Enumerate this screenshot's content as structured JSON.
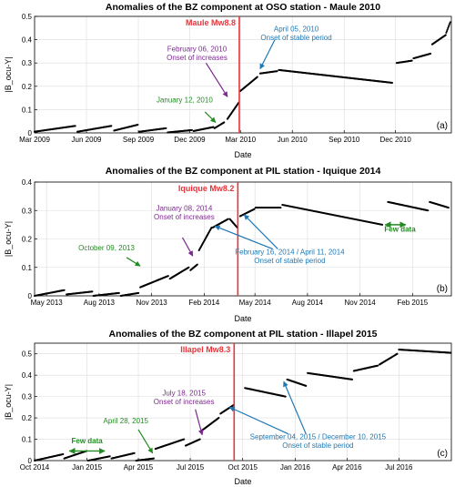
{
  "chart_data": [
    {
      "type": "scatter",
      "title": "Anomalies of the BZ component at OSO station - Maule 2010",
      "xlabel": "Date",
      "ylabel": "|B_ocu-Y|",
      "panel_label": "(a)",
      "xlim": [
        "2009-03-01",
        "2011-03-10"
      ],
      "ylim": [
        0,
        0.5
      ],
      "xticks": [
        {
          "date": "2009-03-01",
          "label": "Mar 2009"
        },
        {
          "date": "2009-06-01",
          "label": "Jun 2009"
        },
        {
          "date": "2009-09-01",
          "label": "Sep 2009"
        },
        {
          "date": "2009-12-01",
          "label": "Dec 2009"
        },
        {
          "date": "2010-03-01",
          "label": "Mar 2010"
        },
        {
          "date": "2010-06-01",
          "label": "Jun 2010"
        },
        {
          "date": "2010-09-01",
          "label": "Sep 2010"
        },
        {
          "date": "2010-12-01",
          "label": "Dec 2010"
        }
      ],
      "yticks": [
        0,
        0.1,
        0.2,
        0.3,
        0.4,
        0.5
      ],
      "grid": true,
      "earthquake": {
        "date": "2010-02-27",
        "label": "Maule Mw8.8",
        "color": "#e8343a"
      },
      "segments": [
        {
          "from": [
            "2009-03-01",
            0.005
          ],
          "to": [
            "2009-05-12",
            0.03
          ]
        },
        {
          "from": [
            "2009-05-16",
            0.005
          ],
          "to": [
            "2009-07-15",
            0.03
          ]
        },
        {
          "from": [
            "2009-07-20",
            0.01
          ],
          "to": [
            "2009-08-31",
            0.035
          ]
        },
        {
          "from": [
            "2009-09-03",
            0.005
          ],
          "to": [
            "2009-10-20",
            0.02
          ]
        },
        {
          "from": [
            "2009-10-23",
            0.002
          ],
          "to": [
            "2009-12-05",
            0.012
          ]
        },
        {
          "from": [
            "2009-12-08",
            0.008
          ],
          "to": [
            "2010-01-12",
            0.025
          ]
        },
        {
          "from": [
            "2010-01-14",
            0.02
          ],
          "to": [
            "2010-01-31",
            0.045
          ]
        },
        {
          "from": [
            "2010-02-06",
            0.06
          ],
          "to": [
            "2010-02-26",
            0.13
          ]
        },
        {
          "from": [
            "2010-03-01",
            0.18
          ],
          "to": [
            "2010-03-31",
            0.24
          ]
        },
        {
          "from": [
            "2010-04-05",
            0.255
          ],
          "to": [
            "2010-05-05",
            0.265
          ]
        },
        {
          "from": [
            "2010-05-08",
            0.27
          ],
          "to": [
            "2010-11-25",
            0.215
          ]
        },
        {
          "from": [
            "2010-12-03",
            0.3
          ],
          "to": [
            "2010-12-30",
            0.31
          ]
        },
        {
          "from": [
            "2011-01-02",
            0.32
          ],
          "to": [
            "2011-02-01",
            0.34
          ]
        },
        {
          "from": [
            "2011-02-04",
            0.38
          ],
          "to": [
            "2011-02-28",
            0.42
          ]
        },
        {
          "from": [
            "2011-03-01",
            0.43
          ],
          "to": [
            "2011-03-08",
            0.475
          ]
        }
      ],
      "annotations": [
        {
          "lines": [
            "April 05, 2010",
            "Onset of stable period"
          ],
          "color": "#1f78b4",
          "text_at": [
            "2010-06-08",
            0.435
          ],
          "arrow_from": [
            "2010-05-01",
            0.4
          ],
          "arrow_to": [
            "2010-04-05",
            0.275
          ]
        },
        {
          "lines": [
            "February 06, 2010",
            "Onset of increases"
          ],
          "color": "#7b2a8e",
          "text_at": [
            "2009-12-14",
            0.35
          ],
          "arrow_from": [
            "2009-12-30",
            0.3
          ],
          "arrow_to": [
            "2010-02-06",
            0.155
          ]
        },
        {
          "lines": [
            "January 12, 2010"
          ],
          "color": "#228b22",
          "text_at": [
            "2009-11-22",
            0.13
          ],
          "arrow_from": [
            "2009-12-28",
            0.09
          ],
          "arrow_to": [
            "2010-01-16",
            0.045
          ]
        }
      ]
    },
    {
      "type": "scatter",
      "title": "Anomalies of the BZ component at PIL station - Iquique 2014",
      "xlabel": "Date",
      "ylabel": "|B_ocu-Y|",
      "panel_label": "(b)",
      "xlim": [
        "2013-04-10",
        "2015-04-10"
      ],
      "ylim": [
        0,
        0.4
      ],
      "xticks": [
        {
          "date": "2013-05-01",
          "label": "May 2013"
        },
        {
          "date": "2013-08-01",
          "label": "Aug 2013"
        },
        {
          "date": "2013-11-01",
          "label": "Nov 2013"
        },
        {
          "date": "2014-02-01",
          "label": "Feb 2014"
        },
        {
          "date": "2014-05-01",
          "label": "May 2014"
        },
        {
          "date": "2014-08-01",
          "label": "Aug 2014"
        },
        {
          "date": "2014-11-01",
          "label": "Nov 2014"
        },
        {
          "date": "2015-02-01",
          "label": "Feb 2015"
        }
      ],
      "yticks": [
        0,
        0.1,
        0.2,
        0.3,
        0.4
      ],
      "grid": true,
      "earthquake": {
        "date": "2014-04-01",
        "label": "Iquique Mw8.2",
        "color": "#e8343a"
      },
      "segments": [
        {
          "from": [
            "2013-04-10",
            0.0
          ],
          "to": [
            "2013-06-01",
            0.02
          ]
        },
        {
          "from": [
            "2013-06-05",
            0.005
          ],
          "to": [
            "2013-07-20",
            0.015
          ]
        },
        {
          "from": [
            "2013-07-22",
            0.0
          ],
          "to": [
            "2013-09-05",
            0.01
          ]
        },
        {
          "from": [
            "2013-09-08",
            0.0
          ],
          "to": [
            "2013-10-09",
            0.01
          ]
        },
        {
          "from": [
            "2013-10-12",
            0.03
          ],
          "to": [
            "2013-11-30",
            0.07
          ]
        },
        {
          "from": [
            "2013-12-03",
            0.06
          ],
          "to": [
            "2014-01-05",
            0.1
          ]
        },
        {
          "from": [
            "2014-01-08",
            0.09
          ],
          "to": [
            "2014-01-20",
            0.11
          ]
        },
        {
          "from": [
            "2014-01-23",
            0.16
          ],
          "to": [
            "2014-02-14",
            0.24
          ]
        },
        {
          "from": [
            "2014-02-16",
            0.24
          ],
          "to": [
            "2014-03-15",
            0.27
          ]
        },
        {
          "from": [
            "2014-03-18",
            0.27
          ],
          "to": [
            "2014-03-31",
            0.24
          ]
        },
        {
          "from": [
            "2014-04-05",
            0.28
          ],
          "to": [
            "2014-04-30",
            0.305
          ]
        },
        {
          "from": [
            "2014-05-02",
            0.31
          ],
          "to": [
            "2014-06-15",
            0.31
          ]
        },
        {
          "from": [
            "2014-06-18",
            0.32
          ],
          "to": [
            "2014-12-10",
            0.25
          ]
        },
        {
          "from": [
            "2014-12-20",
            0.33
          ],
          "to": [
            "2015-02-28",
            0.3
          ]
        },
        {
          "from": [
            "2015-03-03",
            0.33
          ],
          "to": [
            "2015-04-05",
            0.31
          ]
        }
      ],
      "annotations": [
        {
          "lines": [
            "January 08, 2014",
            "Onset of increases"
          ],
          "color": "#7b2a8e",
          "text_at": [
            "2013-12-28",
            0.3
          ],
          "arrow_from": [
            "2013-12-25",
            0.205
          ],
          "arrow_to": [
            "2014-01-12",
            0.14
          ]
        },
        {
          "lines": [
            "October 09, 2013"
          ],
          "color": "#228b22",
          "text_at": [
            "2013-08-14",
            0.16
          ],
          "arrow_from": [
            "2013-09-18",
            0.135
          ],
          "arrow_to": [
            "2013-10-12",
            0.105
          ]
        },
        {
          "lines": [
            "February 16, 2014 / April 11, 2014",
            "Onset of stable period"
          ],
          "color": "#1f78b4",
          "text_at": [
            "2014-07-01",
            0.145
          ],
          "arrow_from": [
            "2014-06-01",
            0.165
          ],
          "arrow_to": [
            "2014-02-20",
            0.245
          ]
        },
        {
          "lines": [],
          "color": "#1f78b4",
          "text_at": [
            "2014-07-01",
            0.145
          ],
          "arrow_from": [
            "2014-06-10",
            0.165
          ],
          "arrow_to": [
            "2014-04-12",
            0.285
          ]
        },
        {
          "lines": [
            "Few data"
          ],
          "color": "#228b22",
          "text_at": [
            "2015-01-10",
            0.225
          ],
          "double_arrow": [
            [
              "2014-12-15",
              0.25
            ],
            [
              "2015-01-20",
              0.25
            ]
          ]
        }
      ]
    },
    {
      "type": "scatter",
      "title": "Anomalies of the BZ component at PIL station - Illapel 2015",
      "xlabel": "Date",
      "ylabel": "|B_ocu-Y|",
      "panel_label": "(c)",
      "xlim": [
        "2014-10-01",
        "2016-10-01"
      ],
      "ylim": [
        0,
        0.55
      ],
      "xticks": [
        {
          "date": "2014-10-01",
          "label": "Oct 2014"
        },
        {
          "date": "2015-01-01",
          "label": "Jan 2015"
        },
        {
          "date": "2015-04-01",
          "label": "Apr 2015"
        },
        {
          "date": "2015-07-01",
          "label": "Jul 2015"
        },
        {
          "date": "2015-10-01",
          "label": "Oct 2015"
        },
        {
          "date": "2016-01-01",
          "label": "Jan 2016"
        },
        {
          "date": "2016-04-01",
          "label": "Apr 2016"
        },
        {
          "date": "2016-07-01",
          "label": "Jul 2016"
        }
      ],
      "yticks": [
        0,
        0.1,
        0.2,
        0.3,
        0.4,
        0.5
      ],
      "grid": true,
      "earthquake": {
        "date": "2015-09-16",
        "label": "Illapel Mw8.3",
        "color": "#e8343a"
      },
      "segments": [
        {
          "from": [
            "2014-10-01",
            0.0
          ],
          "to": [
            "2014-11-20",
            0.03
          ]
        },
        {
          "from": [
            "2014-11-22",
            0.01
          ],
          "to": [
            "2014-12-31",
            0.045
          ]
        },
        {
          "from": [
            "2015-01-03",
            0.0
          ],
          "to": [
            "2015-02-10",
            0.02
          ]
        },
        {
          "from": [
            "2015-02-13",
            0.01
          ],
          "to": [
            "2015-03-25",
            0.035
          ]
        },
        {
          "from": [
            "2015-03-28",
            0.0
          ],
          "to": [
            "2015-04-28",
            0.01
          ]
        },
        {
          "from": [
            "2015-05-01",
            0.055
          ],
          "to": [
            "2015-06-20",
            0.1
          ]
        },
        {
          "from": [
            "2015-06-23",
            0.07
          ],
          "to": [
            "2015-07-18",
            0.1
          ]
        },
        {
          "from": [
            "2015-07-21",
            0.14
          ],
          "to": [
            "2015-08-20",
            0.2
          ]
        },
        {
          "from": [
            "2015-08-23",
            0.22
          ],
          "to": [
            "2015-09-15",
            0.26
          ]
        },
        {
          "from": [
            "2015-10-05",
            0.34
          ],
          "to": [
            "2015-12-15",
            0.3
          ]
        },
        {
          "from": [
            "2015-12-18",
            0.38
          ],
          "to": [
            "2016-01-20",
            0.35
          ]
        },
        {
          "from": [
            "2016-01-23",
            0.41
          ],
          "to": [
            "2016-04-10",
            0.38
          ]
        },
        {
          "from": [
            "2016-04-13",
            0.42
          ],
          "to": [
            "2016-05-25",
            0.445
          ]
        },
        {
          "from": [
            "2016-05-28",
            0.45
          ],
          "to": [
            "2016-06-28",
            0.5
          ]
        },
        {
          "from": [
            "2016-07-01",
            0.52
          ],
          "to": [
            "2016-09-30",
            0.505
          ]
        }
      ],
      "annotations": [
        {
          "lines": [
            "July 18, 2015",
            "Onset of increases"
          ],
          "color": "#7b2a8e",
          "text_at": [
            "2015-06-20",
            0.305
          ],
          "arrow_from": [
            "2015-07-10",
            0.24
          ],
          "arrow_to": [
            "2015-07-22",
            0.12
          ]
        },
        {
          "lines": [
            "April 28, 2015"
          ],
          "color": "#228b22",
          "text_at": [
            "2015-03-10",
            0.175
          ],
          "arrow_from": [
            "2015-04-01",
            0.145
          ],
          "arrow_to": [
            "2015-04-26",
            0.035
          ]
        },
        {
          "lines": [
            "September 04, 2015 / December 10, 2015",
            "Onset of stable period"
          ],
          "color": "#1f78b4",
          "text_at": [
            "2016-02-10",
            0.1
          ],
          "arrow_from": [
            "2015-12-20",
            0.125
          ],
          "arrow_to": [
            "2015-09-08",
            0.25
          ]
        },
        {
          "lines": [],
          "color": "#1f78b4",
          "text_at": [
            "2016-02-10",
            0.1
          ],
          "arrow_from": [
            "2016-01-20",
            0.125
          ],
          "arrow_to": [
            "2015-12-12",
            0.37
          ]
        },
        {
          "lines": [
            "Few data"
          ],
          "color": "#228b22",
          "text_at": [
            "2015-01-01",
            0.08
          ],
          "double_arrow": [
            [
              "2014-12-01",
              0.045
            ],
            [
              "2015-02-01",
              0.045
            ]
          ]
        }
      ]
    }
  ]
}
